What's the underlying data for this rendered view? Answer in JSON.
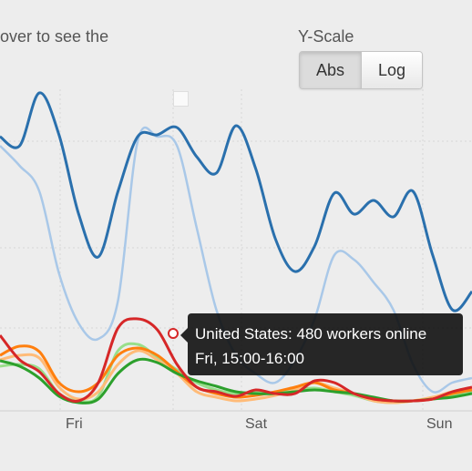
{
  "header": {
    "hint_text": "over to see the",
    "y_scale_label": "Y-Scale",
    "scale_options": [
      "Abs",
      "Log"
    ],
    "selected_scale": "Abs"
  },
  "chart_data": {
    "type": "line",
    "x_ticks": [
      "Fri",
      "Sat",
      "Sun"
    ],
    "series": [
      {
        "color": "#2a70ad",
        "values": [
          150,
          160,
          102,
          148,
          235,
          282,
          210,
          150,
          148,
          140,
          172,
          190,
          138,
          185,
          262,
          298,
          270,
          212,
          235,
          220,
          238,
          210,
          280,
          340,
          320
        ]
      },
      {
        "color": "#a9c8e8",
        "values": [
          160,
          182,
          210,
          300,
          355,
          372,
          330,
          155,
          150,
          160,
          250,
          340,
          390,
          410,
          420,
          395,
          350,
          280,
          285,
          310,
          340,
          400,
          430,
          420,
          415
        ]
      },
      {
        "color": "#d62728",
        "values": [
          368,
          395,
          408,
          432,
          440,
          420,
          360,
          350,
          362,
          400,
          425,
          430,
          435,
          428,
          432,
          432,
          418,
          420,
          432,
          438,
          440,
          440,
          438,
          430,
          425
        ]
      },
      {
        "color": "#ff7f0e",
        "values": [
          390,
          380,
          386,
          420,
          430,
          420,
          390,
          382,
          390,
          408,
          425,
          432,
          436,
          434,
          430,
          425,
          420,
          428,
          432,
          438,
          440,
          440,
          438,
          432,
          428
        ]
      },
      {
        "color": "#ffbb78",
        "values": [
          395,
          390,
          393,
          425,
          438,
          430,
          400,
          385,
          395,
          410,
          430,
          436,
          440,
          438,
          434,
          428,
          420,
          426,
          432,
          440,
          442,
          440,
          436,
          430,
          426
        ]
      },
      {
        "color": "#98df8a",
        "values": [
          402,
          400,
          405,
          432,
          440,
          435,
          385,
          378,
          392,
          406,
          420,
          428,
          432,
          430,
          432,
          428,
          426,
          430,
          434,
          440,
          442,
          440,
          438,
          434,
          430
        ]
      },
      {
        "color": "#2ca02c",
        "values": [
          396,
          402,
          415,
          435,
          442,
          438,
          410,
          395,
          398,
          410,
          418,
          424,
          430,
          432,
          432,
          430,
          428,
          430,
          432,
          436,
          440,
          440,
          438,
          436,
          432
        ]
      }
    ]
  },
  "tooltip": {
    "line1": "United States: 480 workers online",
    "line2": "Fri, 15:00-16:00"
  }
}
